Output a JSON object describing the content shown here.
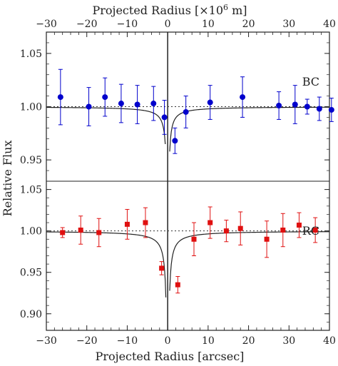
{
  "chart_data": {
    "type": "scatter",
    "top_axis": {
      "label_prefix": "Projected Radius [×10",
      "label_exponent": "6",
      "label_suffix": " m]",
      "tick_values": [
        -30,
        -20,
        -10,
        0,
        10,
        20,
        30,
        40
      ],
      "tick_labels": [
        "−30",
        "−20",
        "−10",
        "0",
        "10",
        "20",
        "30",
        "40"
      ]
    },
    "xlabel": "Projected Radius [arcsec]",
    "ylabel": "Relative Flux",
    "xlim": [
      -30,
      40
    ],
    "x_ticks": [
      -30,
      -20,
      -10,
      0,
      10,
      20,
      30,
      40
    ],
    "x_tick_labels": [
      "−30",
      "−20",
      "−10",
      "0",
      "10",
      "20",
      "30",
      "40"
    ],
    "panels": [
      {
        "label": "BC",
        "color": "#0000cc",
        "marker": "circle",
        "ylim": [
          0.93,
          1.07
        ],
        "y_ticks": [
          0.95,
          1.0,
          1.05
        ],
        "y_tick_labels": [
          "0.95",
          "1.00",
          "1.05"
        ],
        "reference_level": 1.0,
        "points": [
          {
            "x": -26.5,
            "y": 1.009,
            "err": 0.026
          },
          {
            "x": -19.5,
            "y": 1.0,
            "err": 0.018
          },
          {
            "x": -15.5,
            "y": 1.009,
            "err": 0.018
          },
          {
            "x": -11.5,
            "y": 1.003,
            "err": 0.018
          },
          {
            "x": -7.5,
            "y": 1.002,
            "err": 0.018
          },
          {
            "x": -3.5,
            "y": 1.003,
            "err": 0.016
          },
          {
            "x": -0.8,
            "y": 0.99,
            "err": 0.016
          },
          {
            "x": 1.8,
            "y": 0.968,
            "err": 0.012
          },
          {
            "x": 4.5,
            "y": 0.995,
            "err": 0.015
          },
          {
            "x": 10.5,
            "y": 1.004,
            "err": 0.016
          },
          {
            "x": 18.5,
            "y": 1.009,
            "err": 0.019
          },
          {
            "x": 27.5,
            "y": 1.001,
            "err": 0.013
          },
          {
            "x": 31.5,
            "y": 1.002,
            "err": 0.018
          },
          {
            "x": 34.5,
            "y": 1.0,
            "err": 0.007
          },
          {
            "x": 37.5,
            "y": 0.998,
            "err": 0.011
          },
          {
            "x": 40.5,
            "y": 0.997,
            "err": 0.011
          }
        ]
      },
      {
        "label": "RC",
        "color": "#e01010",
        "marker": "square",
        "ylim": [
          0.88,
          1.06
        ],
        "y_ticks": [
          0.9,
          0.95,
          1.0,
          1.05
        ],
        "y_tick_labels": [
          "0.90",
          "0.95",
          "1.00",
          "1.05"
        ],
        "reference_level": 1.0,
        "points": [
          {
            "x": -26.0,
            "y": 0.998,
            "err": 0.006
          },
          {
            "x": -21.5,
            "y": 1.001,
            "err": 0.017
          },
          {
            "x": -17.0,
            "y": 0.998,
            "err": 0.017
          },
          {
            "x": -10.0,
            "y": 1.008,
            "err": 0.018
          },
          {
            "x": -5.5,
            "y": 1.01,
            "err": 0.018
          },
          {
            "x": -1.5,
            "y": 0.955,
            "err": 0.008
          },
          {
            "x": 2.5,
            "y": 0.935,
            "err": 0.01
          },
          {
            "x": 6.5,
            "y": 0.99,
            "err": 0.02
          },
          {
            "x": 10.5,
            "y": 1.01,
            "err": 0.019
          },
          {
            "x": 14.5,
            "y": 1.0,
            "err": 0.013
          },
          {
            "x": 18.0,
            "y": 1.003,
            "err": 0.02
          },
          {
            "x": 24.5,
            "y": 0.99,
            "err": 0.022
          },
          {
            "x": 28.5,
            "y": 1.001,
            "err": 0.02
          },
          {
            "x": 32.5,
            "y": 1.007,
            "err": 0.015
          },
          {
            "x": 36.5,
            "y": 1.001,
            "err": 0.015
          }
        ]
      }
    ],
    "fit_curve": "1 - A/|x|"
  }
}
